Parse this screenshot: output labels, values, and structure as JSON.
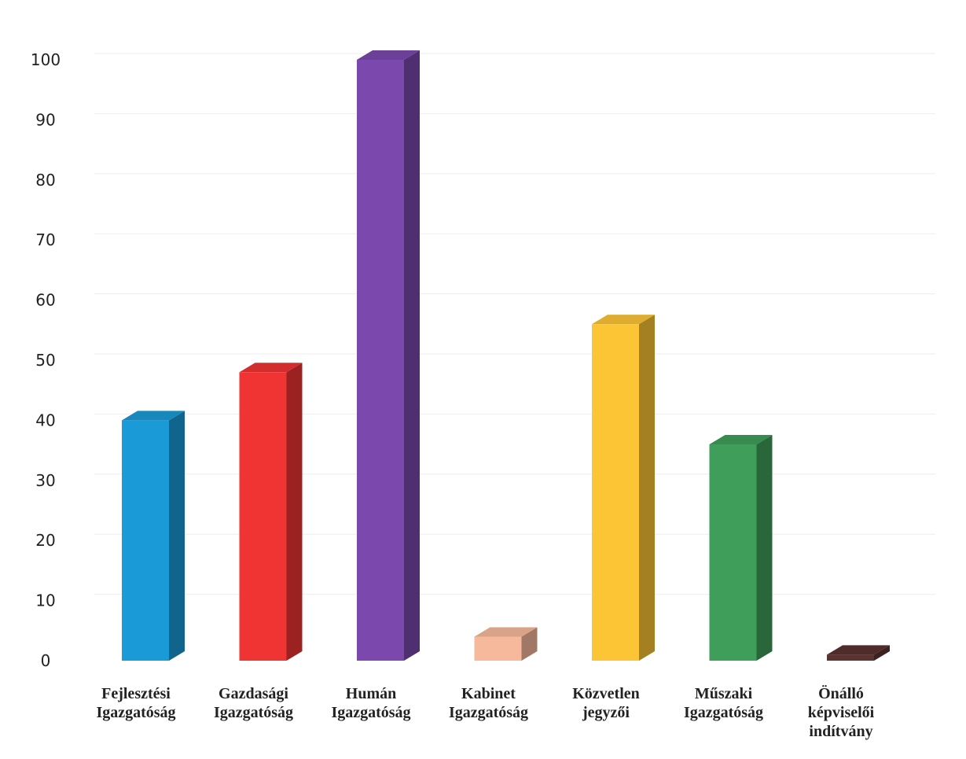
{
  "chart_data": {
    "type": "bar",
    "style": "3d-column",
    "title": "",
    "xlabel": "",
    "ylabel": "",
    "ylim": [
      0,
      100
    ],
    "yticks": [
      0,
      10,
      20,
      30,
      40,
      50,
      60,
      70,
      80,
      90,
      100
    ],
    "grid": true,
    "legend": "none",
    "categories": [
      [
        "Fejlesztési",
        "Igazgatóság"
      ],
      [
        "Gazdasági",
        "Igazgatóság"
      ],
      [
        "Humán",
        "Igazgatóság"
      ],
      [
        "Kabinet",
        "Igazgatóság"
      ],
      [
        "Közvetlen",
        "jegyzői"
      ],
      [
        "Műszaki",
        "Igazgatóság"
      ],
      [
        "Önálló",
        "képviselői",
        "indítvány"
      ]
    ],
    "values": [
      40,
      48,
      100,
      4,
      56,
      36,
      1
    ],
    "colors": [
      "#1a9ad6",
      "#f03434",
      "#7b48ae",
      "#f6b99b",
      "#fcc535",
      "#3f9e5a",
      "#5a3230"
    ]
  }
}
